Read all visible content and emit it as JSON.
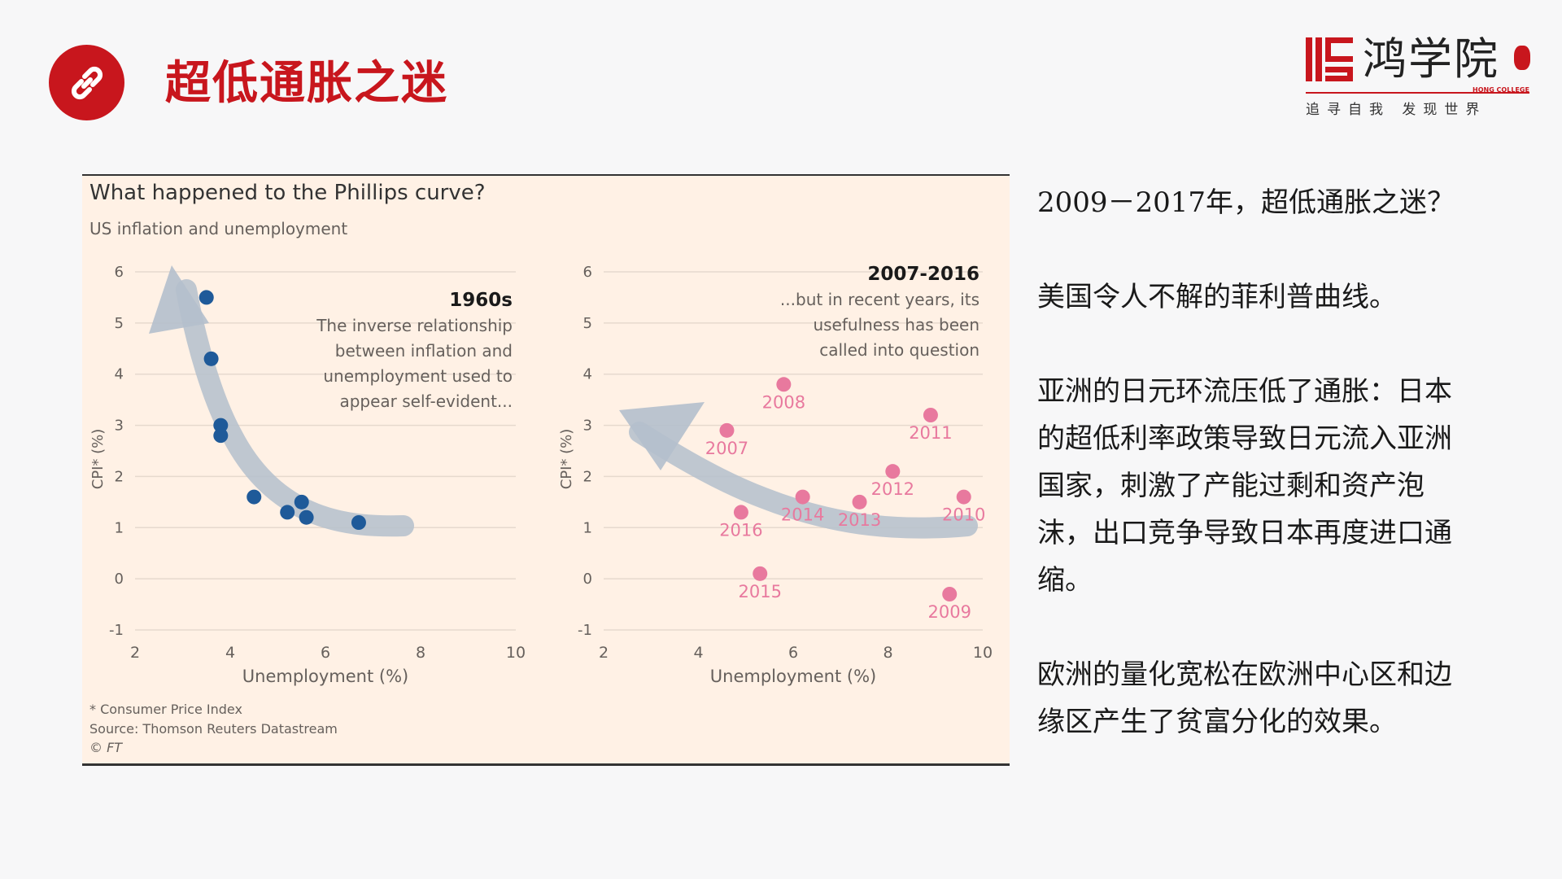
{
  "header": {
    "title": "超低通胀之迷",
    "link_icon": "link-icon"
  },
  "logo": {
    "name": "鸿学院",
    "sub": "HONG COLLEGE",
    "slogan": "追寻自我  发现世界"
  },
  "colors": {
    "brand_red": "#c8161d",
    "chart_bg": "#fff1e5",
    "blue_points": "#1f5a99",
    "pink_points": "#e8799e",
    "arrow": "#b4bfcc"
  },
  "chart_data": [
    {
      "type": "scatter",
      "panel": "left",
      "title": "What happened to the Phillips curve?",
      "subtitle": "US inflation and unemployment",
      "heading": "1960s",
      "annotation": [
        "The inverse relationship",
        "between inflation and",
        "unemployment used to",
        "appear self-evident..."
      ],
      "xlabel": "Unemployment (%)",
      "ylabel": "CPI* (%)",
      "xlim": [
        2,
        10
      ],
      "ylim": [
        -1,
        6
      ],
      "xticks": [
        2,
        4,
        6,
        8,
        10
      ],
      "yticks": [
        -1,
        0,
        1,
        2,
        3,
        4,
        5,
        6
      ],
      "grid": true,
      "points": [
        {
          "x": 3.5,
          "y": 5.5
        },
        {
          "x": 3.6,
          "y": 4.3
        },
        {
          "x": 3.8,
          "y": 3.0
        },
        {
          "x": 3.8,
          "y": 2.8
        },
        {
          "x": 4.5,
          "y": 1.6
        },
        {
          "x": 5.2,
          "y": 1.3
        },
        {
          "x": 5.5,
          "y": 1.5
        },
        {
          "x": 5.6,
          "y": 1.2
        },
        {
          "x": 6.7,
          "y": 1.1
        }
      ]
    },
    {
      "type": "scatter",
      "panel": "right",
      "heading": "2007-2016",
      "annotation": [
        "...but in recent years, its",
        "usefulness has been",
        "called into question"
      ],
      "xlabel": "Unemployment (%)",
      "ylabel": "CPI* (%)",
      "xlim": [
        2,
        10
      ],
      "ylim": [
        -1,
        6
      ],
      "xticks": [
        2,
        4,
        6,
        8,
        10
      ],
      "yticks": [
        -1,
        0,
        1,
        2,
        3,
        4,
        5,
        6
      ],
      "grid": true,
      "points": [
        {
          "label": "2007",
          "x": 4.6,
          "y": 2.9
        },
        {
          "label": "2008",
          "x": 5.8,
          "y": 3.8
        },
        {
          "label": "2009",
          "x": 9.3,
          "y": -0.3
        },
        {
          "label": "2010",
          "x": 9.6,
          "y": 1.6
        },
        {
          "label": "2011",
          "x": 8.9,
          "y": 3.2
        },
        {
          "label": "2012",
          "x": 8.1,
          "y": 2.1
        },
        {
          "label": "2013",
          "x": 7.4,
          "y": 1.5
        },
        {
          "label": "2014",
          "x": 6.2,
          "y": 1.6
        },
        {
          "label": "2015",
          "x": 5.3,
          "y": 0.1
        },
        {
          "label": "2016",
          "x": 4.9,
          "y": 1.3
        }
      ]
    }
  ],
  "chart_footer": {
    "note": "* Consumer Price Index",
    "source": "Source: Thomson Reuters Datastream",
    "copyright": "© FT"
  },
  "side_text": {
    "p1": "2009－2017年，超低通胀之迷？",
    "p2": "美国令人不解的菲利普曲线。",
    "p3": "亚洲的日元环流压低了通胀：日本的超低利率政策导致日元流入亚洲国家，刺激了产能过剩和资产泡沫，出口竞争导致日本再度进口通缩。",
    "p4": "欧洲的量化宽松在欧洲中心区和边缘区产生了贫富分化的效果。"
  }
}
